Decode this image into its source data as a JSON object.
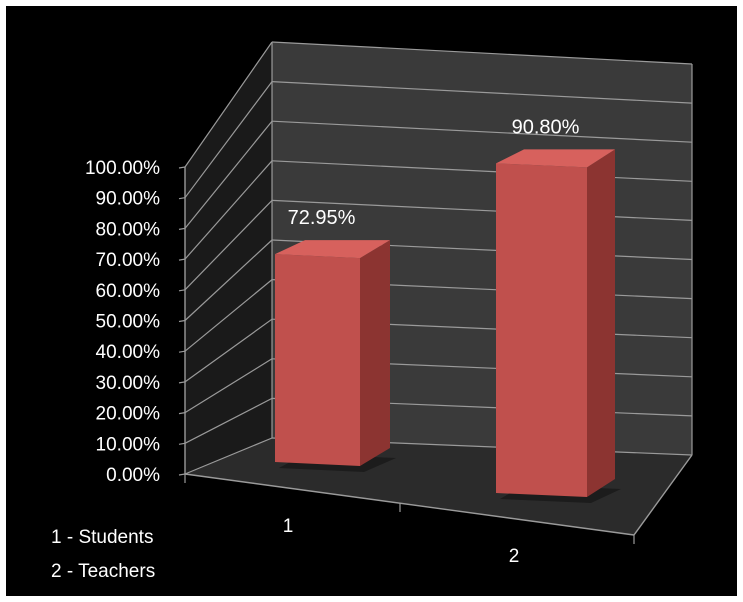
{
  "chart_data": {
    "type": "bar",
    "categories": [
      "1",
      "2"
    ],
    "values": [
      72.95,
      90.8
    ],
    "value_labels": [
      "72.95%",
      "90.80%"
    ],
    "ylim": [
      0,
      100
    ],
    "y_ticks": [
      "0.00%",
      "10.00%",
      "20.00%",
      "30.00%",
      "40.00%",
      "50.00%",
      "60.00%",
      "70.00%",
      "80.00%",
      "90.00%",
      "100.00%"
    ],
    "grid": true,
    "legend": "none",
    "category_notes": [
      "1 - Students",
      "2 - Teachers"
    ],
    "colors": {
      "background": "#000000",
      "plot_wall": "#3a3a3a",
      "floor": "#2b2b2b",
      "gridline": "#9a9a9a",
      "bar_front": "#c0504d",
      "bar_top": "#d7615d",
      "bar_side": "#8c3431"
    }
  }
}
